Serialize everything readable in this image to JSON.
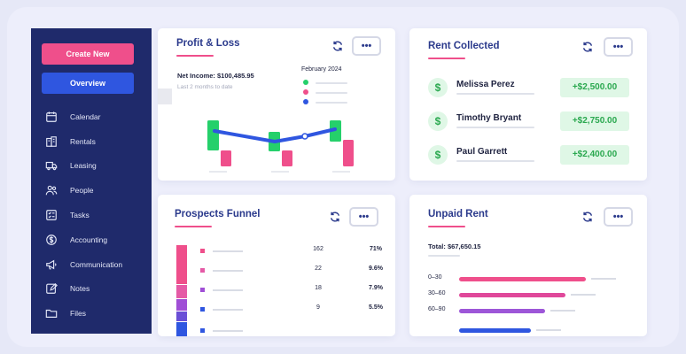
{
  "sidebar": {
    "create_label": "Create New",
    "overview_label": "Overview",
    "items": [
      {
        "label": "Calendar",
        "icon": "calendar-icon"
      },
      {
        "label": "Rentals",
        "icon": "building-icon"
      },
      {
        "label": "Leasing",
        "icon": "truck-icon"
      },
      {
        "label": "People",
        "icon": "people-icon"
      },
      {
        "label": "Tasks",
        "icon": "tasks-icon"
      },
      {
        "label": "Accounting",
        "icon": "accounting-icon"
      },
      {
        "label": "Communication",
        "icon": "megaphone-icon"
      },
      {
        "label": "Notes",
        "icon": "notes-icon"
      },
      {
        "label": "Files",
        "icon": "folder-icon"
      }
    ]
  },
  "profit_loss": {
    "title": "Profit & Loss",
    "net_income": "Net Income: $100,485.95",
    "period": "Last 2 months to date",
    "legend_title": "February 2024",
    "legend_colors": [
      "#25d06b",
      "#ef4f8b",
      "#2f56e0"
    ]
  },
  "rent_collected": {
    "title": "Rent Collected",
    "rows": [
      {
        "name": "Melissa Perez",
        "amount": "+$2,500.00"
      },
      {
        "name": "Timothy Bryant",
        "amount": "+$2,750.00"
      },
      {
        "name": "Paul Garrett",
        "amount": "+$2,400.00"
      }
    ]
  },
  "prospects_funnel": {
    "title": "Prospects Funnel",
    "rows": [
      {
        "count": "162",
        "percent": "71%",
        "color": "#ef4f8b"
      },
      {
        "count": "22",
        "percent": "9.6%",
        "color": "#e55aa6"
      },
      {
        "count": "18",
        "percent": "7.9%",
        "color": "#a04fd6"
      },
      {
        "count": "9",
        "percent": "5.5%",
        "color": "#2f56e0"
      },
      {
        "count": "",
        "percent": "",
        "color": "#2f56e0"
      }
    ]
  },
  "unpaid_rent": {
    "title": "Unpaid Rent",
    "total": "Total: $67,650.15",
    "rows": [
      {
        "label": "0–30",
        "share": 0.62,
        "color": "#ef4f8b"
      },
      {
        "label": "30–60",
        "share": 0.52,
        "color": "#e0489a"
      },
      {
        "label": "60–90",
        "share": 0.42,
        "color": "#9d56d8"
      },
      {
        "label": "",
        "share": 0.35,
        "color": "#2f56e0"
      }
    ]
  },
  "more_label": "•••"
}
